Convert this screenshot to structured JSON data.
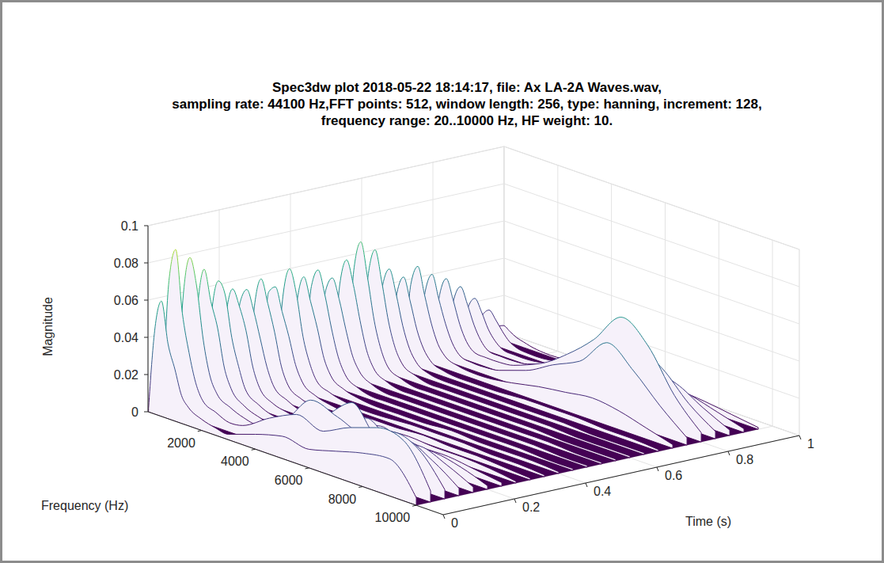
{
  "chart_data": {
    "type": "waterfall",
    "title": [
      "Spec3dw plot 2018-05-22 18:14:17, file: Ax LA-2A Waves.wav,",
      "sampling rate: 44100 Hz,FFT points: 512, window length: 256, type: hanning, increment: 128,",
      "frequency range: 20..10000 Hz, HF weight: 10."
    ],
    "xlabel": "Frequency (Hz)",
    "ylabel": "Time (s)",
    "zlabel": "Magnitude",
    "xlim": [
      0,
      11000
    ],
    "xticks": [
      2000,
      4000,
      6000,
      8000,
      10000
    ],
    "ylim": [
      0,
      1
    ],
    "yticks": [
      0,
      0.2,
      0.4,
      0.6,
      0.8,
      1
    ],
    "zlim": [
      0,
      0.1
    ],
    "zticks": [
      0,
      0.02,
      0.04,
      0.06,
      0.08,
      0.1
    ],
    "grid": true,
    "x": [
      20,
      250,
      500,
      750,
      1000,
      1250,
      1500,
      2000,
      2500,
      3000,
      4000,
      5000,
      6000,
      7000,
      8000,
      9000,
      10000
    ],
    "y": [
      0,
      0.04,
      0.08,
      0.12,
      0.16,
      0.2,
      0.24,
      0.28,
      0.32,
      0.36,
      0.4,
      0.44,
      0.48,
      0.52,
      0.56,
      0.6,
      0.64,
      0.68,
      0.72,
      0.76,
      0.8,
      0.84,
      0.88,
      0.92,
      0.96
    ],
    "z": [
      [
        0.002,
        0.045,
        0.062,
        0.04,
        0.028,
        0.015,
        0.01,
        0.006,
        0.004,
        0.003,
        0.008,
        0.012,
        0.01,
        0.014,
        0.018,
        0.02,
        0.004
      ],
      [
        0.003,
        0.07,
        0.088,
        0.055,
        0.035,
        0.02,
        0.012,
        0.008,
        0.005,
        0.006,
        0.015,
        0.022,
        0.018,
        0.025,
        0.03,
        0.028,
        0.006
      ],
      [
        0.003,
        0.06,
        0.082,
        0.068,
        0.04,
        0.022,
        0.014,
        0.009,
        0.006,
        0.005,
        0.012,
        0.028,
        0.024,
        0.02,
        0.026,
        0.022,
        0.005
      ],
      [
        0.002,
        0.052,
        0.074,
        0.058,
        0.045,
        0.025,
        0.015,
        0.008,
        0.005,
        0.004,
        0.01,
        0.018,
        0.03,
        0.016,
        0.02,
        0.014,
        0.004
      ],
      [
        0.002,
        0.048,
        0.066,
        0.06,
        0.038,
        0.024,
        0.013,
        0.007,
        0.004,
        0.004,
        0.008,
        0.014,
        0.02,
        0.012,
        0.015,
        0.01,
        0.003
      ],
      [
        0.002,
        0.044,
        0.06,
        0.052,
        0.04,
        0.022,
        0.012,
        0.006,
        0.004,
        0.003,
        0.006,
        0.01,
        0.014,
        0.009,
        0.01,
        0.007,
        0.002
      ],
      [
        0.002,
        0.05,
        0.058,
        0.048,
        0.034,
        0.02,
        0.011,
        0.006,
        0.003,
        0.003,
        0.004,
        0.006,
        0.008,
        0.006,
        0.006,
        0.004,
        0.002
      ],
      [
        0.002,
        0.046,
        0.062,
        0.05,
        0.036,
        0.019,
        0.01,
        0.005,
        0.003,
        0.002,
        0.003,
        0.004,
        0.005,
        0.004,
        0.004,
        0.003,
        0.001
      ],
      [
        0.002,
        0.052,
        0.056,
        0.044,
        0.032,
        0.018,
        0.01,
        0.005,
        0.003,
        0.002,
        0.003,
        0.003,
        0.004,
        0.003,
        0.003,
        0.002,
        0.001
      ],
      [
        0.002,
        0.048,
        0.064,
        0.052,
        0.03,
        0.017,
        0.009,
        0.005,
        0.003,
        0.002,
        0.002,
        0.003,
        0.003,
        0.003,
        0.002,
        0.002,
        0.001
      ],
      [
        0.002,
        0.044,
        0.058,
        0.046,
        0.033,
        0.018,
        0.01,
        0.005,
        0.003,
        0.002,
        0.002,
        0.002,
        0.003,
        0.002,
        0.002,
        0.002,
        0.001
      ],
      [
        0.002,
        0.05,
        0.06,
        0.048,
        0.031,
        0.017,
        0.009,
        0.004,
        0.002,
        0.002,
        0.002,
        0.002,
        0.002,
        0.002,
        0.002,
        0.001,
        0.001
      ],
      [
        0.002,
        0.046,
        0.054,
        0.044,
        0.029,
        0.016,
        0.009,
        0.004,
        0.002,
        0.002,
        0.002,
        0.002,
        0.002,
        0.002,
        0.002,
        0.001,
        0.001
      ],
      [
        0.002,
        0.048,
        0.062,
        0.05,
        0.032,
        0.017,
        0.009,
        0.004,
        0.002,
        0.002,
        0.002,
        0.002,
        0.002,
        0.002,
        0.002,
        0.001,
        0.001
      ],
      [
        0.002,
        0.055,
        0.07,
        0.052,
        0.03,
        0.016,
        0.008,
        0.004,
        0.002,
        0.002,
        0.002,
        0.002,
        0.002,
        0.002,
        0.001,
        0.001,
        0.001
      ],
      [
        0.002,
        0.05,
        0.064,
        0.048,
        0.028,
        0.015,
        0.008,
        0.004,
        0.002,
        0.002,
        0.002,
        0.002,
        0.002,
        0.002,
        0.001,
        0.001,
        0.001
      ],
      [
        0.002,
        0.042,
        0.052,
        0.04,
        0.024,
        0.013,
        0.007,
        0.003,
        0.002,
        0.002,
        0.002,
        0.002,
        0.002,
        0.002,
        0.001,
        0.001,
        0.001
      ],
      [
        0.002,
        0.036,
        0.046,
        0.034,
        0.02,
        0.011,
        0.006,
        0.003,
        0.002,
        0.002,
        0.002,
        0.003,
        0.003,
        0.003,
        0.002,
        0.002,
        0.001
      ],
      [
        0.002,
        0.04,
        0.05,
        0.036,
        0.022,
        0.012,
        0.007,
        0.004,
        0.003,
        0.003,
        0.005,
        0.008,
        0.01,
        0.012,
        0.01,
        0.006,
        0.002
      ],
      [
        0.002,
        0.034,
        0.044,
        0.032,
        0.02,
        0.011,
        0.006,
        0.004,
        0.004,
        0.005,
        0.01,
        0.018,
        0.025,
        0.04,
        0.03,
        0.016,
        0.004
      ],
      [
        0.002,
        0.03,
        0.04,
        0.03,
        0.018,
        0.01,
        0.006,
        0.005,
        0.005,
        0.006,
        0.012,
        0.022,
        0.035,
        0.052,
        0.042,
        0.02,
        0.005
      ],
      [
        0.002,
        0.026,
        0.034,
        0.026,
        0.016,
        0.009,
        0.005,
        0.004,
        0.004,
        0.005,
        0.01,
        0.016,
        0.024,
        0.034,
        0.028,
        0.014,
        0.004
      ],
      [
        0.001,
        0.02,
        0.026,
        0.02,
        0.012,
        0.007,
        0.004,
        0.003,
        0.003,
        0.004,
        0.008,
        0.012,
        0.016,
        0.02,
        0.018,
        0.01,
        0.003
      ],
      [
        0.001,
        0.014,
        0.018,
        0.014,
        0.009,
        0.005,
        0.003,
        0.002,
        0.002,
        0.003,
        0.005,
        0.008,
        0.01,
        0.012,
        0.01,
        0.006,
        0.002
      ],
      [
        0.001,
        0.006,
        0.008,
        0.006,
        0.004,
        0.003,
        0.002,
        0.001,
        0.001,
        0.002,
        0.003,
        0.004,
        0.005,
        0.006,
        0.005,
        0.003,
        0.001
      ]
    ]
  }
}
